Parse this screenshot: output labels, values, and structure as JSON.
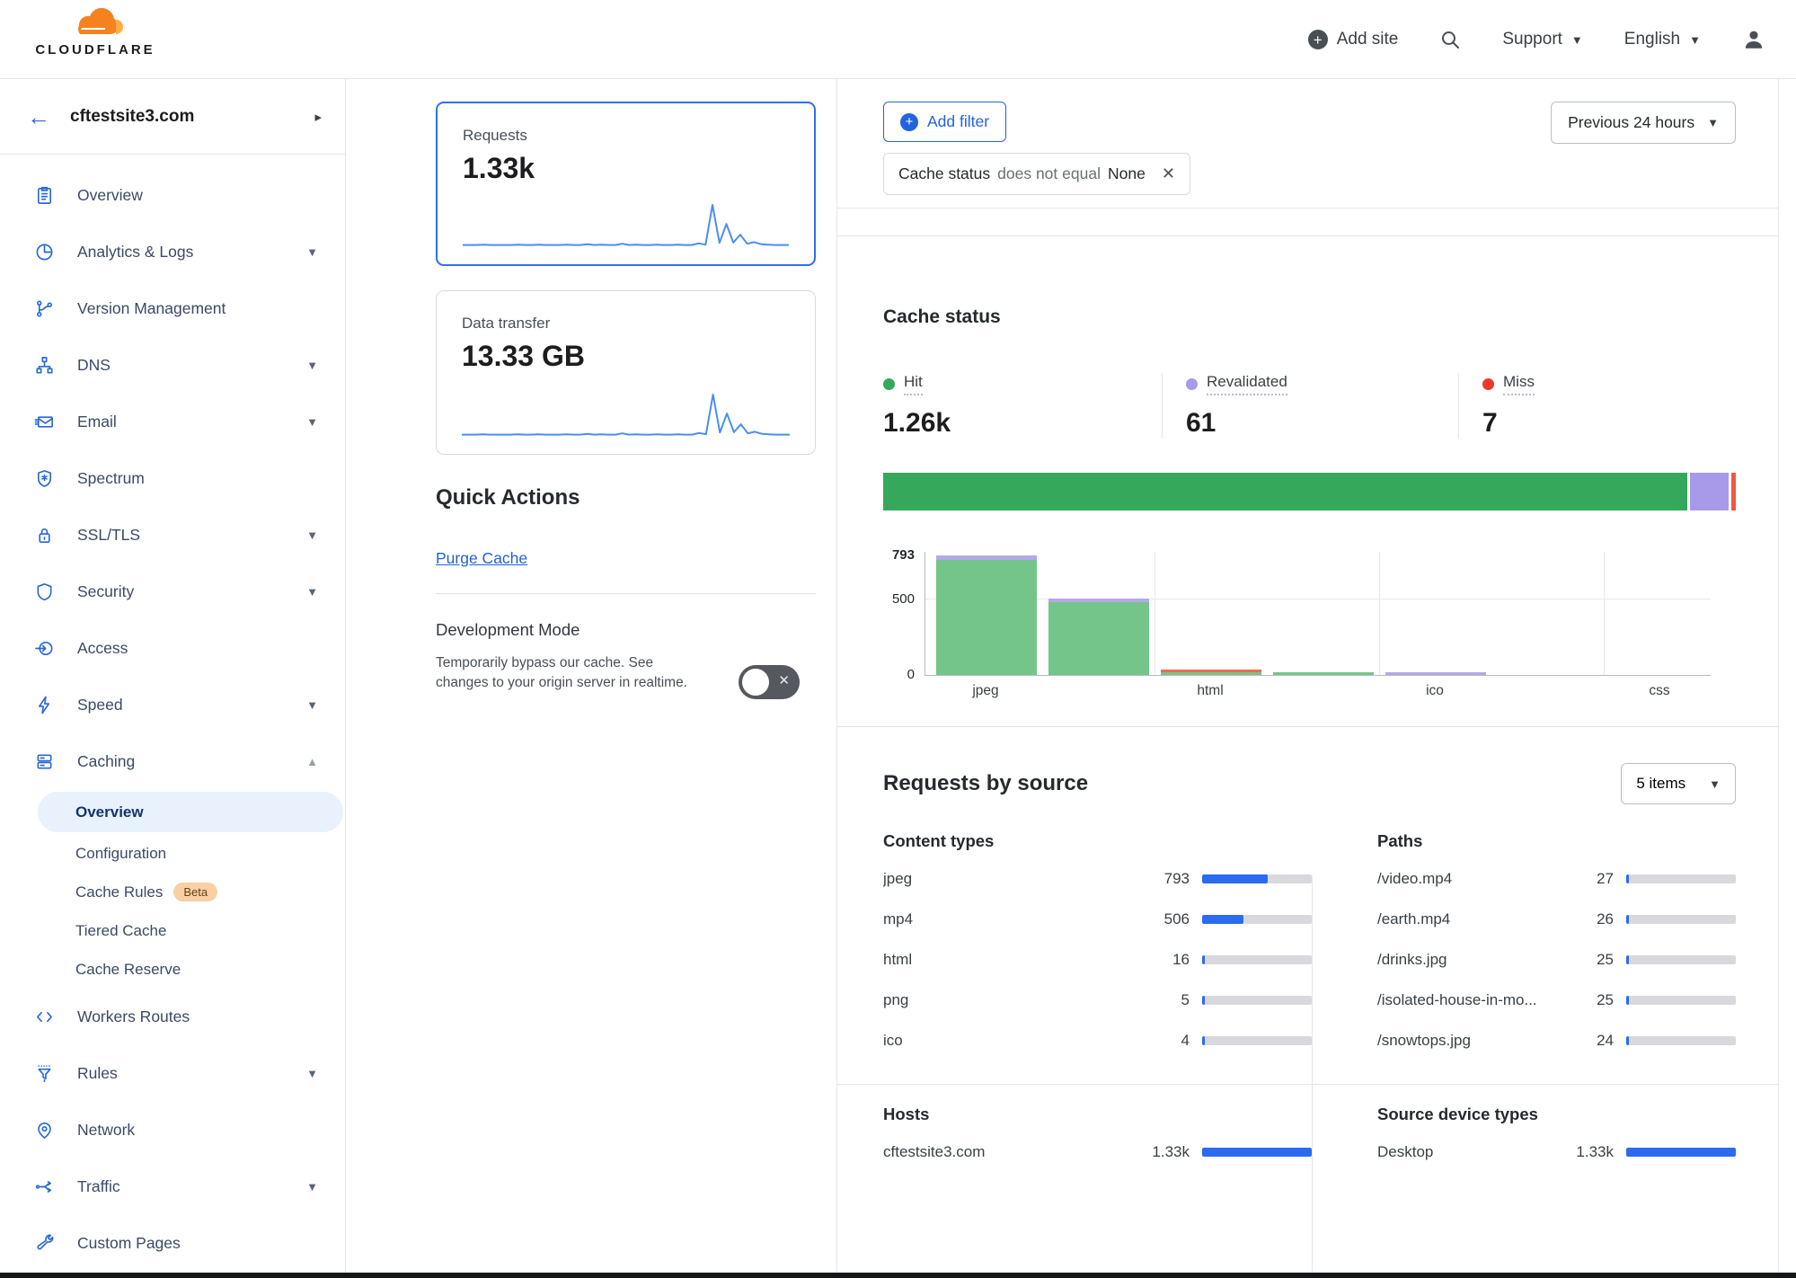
{
  "header": {
    "logo_text": "CLOUDFLARE",
    "add_site_label": "Add site",
    "support_label": "Support",
    "language_label": "English"
  },
  "sidebar": {
    "site_name": "cftestsite3.com",
    "items": [
      {
        "label": "Overview"
      },
      {
        "label": "Analytics & Logs"
      },
      {
        "label": "Version Management"
      },
      {
        "label": "DNS"
      },
      {
        "label": "Email"
      },
      {
        "label": "Spectrum"
      },
      {
        "label": "SSL/TLS"
      },
      {
        "label": "Security"
      },
      {
        "label": "Access"
      },
      {
        "label": "Speed"
      },
      {
        "label": "Caching"
      },
      {
        "label": "Workers Routes"
      },
      {
        "label": "Rules"
      },
      {
        "label": "Network"
      },
      {
        "label": "Traffic"
      },
      {
        "label": "Custom Pages"
      }
    ],
    "caching_subitems": [
      {
        "label": "Overview",
        "selected": true
      },
      {
        "label": "Configuration"
      },
      {
        "label": "Cache Rules",
        "badge": "Beta"
      },
      {
        "label": "Tiered Cache"
      },
      {
        "label": "Cache Reserve"
      }
    ]
  },
  "quick_panel": {
    "requests_label": "Requests",
    "requests_value": "1.33k",
    "data_transfer_label": "Data transfer",
    "data_transfer_value": "13.33 GB",
    "quick_actions_title": "Quick Actions",
    "purge_cache_label": "Purge Cache",
    "dev_mode_title": "Development Mode",
    "dev_mode_desc": "Temporarily bypass our cache. See changes to your origin server in realtime.",
    "dev_mode_state": "off"
  },
  "filters": {
    "add_filter_label": "Add filter",
    "chip_field": "Cache status",
    "chip_operator": "does not equal",
    "chip_value": "None",
    "time_range_label": "Previous 24 hours"
  },
  "cache_status": {
    "title": "Cache status",
    "stats": [
      {
        "label": "Hit",
        "value": "1.26k",
        "color": "#35a85c"
      },
      {
        "label": "Revalidated",
        "value": "61",
        "color": "#a89ae8"
      },
      {
        "label": "Miss",
        "value": "7",
        "color": "#f2382c"
      }
    ]
  },
  "requests_by_source": {
    "title": "Requests by source",
    "items_dropdown_label": "5 items",
    "content_types_title": "Content types",
    "paths_title": "Paths",
    "hosts_title": "Hosts",
    "devices_title": "Source device types"
  },
  "chart_data": [
    {
      "id": "requests-sparkline",
      "type": "line",
      "title": "Requests (Previous 24 hours)",
      "ylim": [
        0,
        100
      ],
      "values": [
        3,
        3,
        3,
        4,
        3,
        3,
        3,
        3,
        4,
        3,
        3,
        4,
        3,
        3,
        3,
        4,
        3,
        3,
        5,
        3,
        4,
        3,
        3,
        6,
        3,
        4,
        3,
        3,
        4,
        3,
        3,
        4,
        3,
        3,
        7,
        4,
        100,
        8,
        54,
        9,
        28,
        6,
        10,
        5,
        4,
        3,
        3,
        3
      ],
      "line_color": "#4a8df2"
    },
    {
      "id": "cache-status-stacked-bar",
      "type": "bar",
      "orientation": "horizontal-stacked",
      "series": [
        {
          "name": "Hit",
          "value": 1256,
          "color": "#35a85c"
        },
        {
          "name": "Revalidated",
          "value": 61,
          "color": "#a89ae8"
        },
        {
          "name": "Miss",
          "value": 7,
          "color": "#f25746"
        }
      ]
    },
    {
      "id": "cache-status-by-content-type",
      "type": "bar",
      "stacked": true,
      "categories": [
        "jpeg",
        "mp4",
        "html",
        "png",
        "ico",
        "",
        "css"
      ],
      "x_tick_labels": [
        {
          "slot": 0,
          "text": "jpeg"
        },
        {
          "slot": 2,
          "text": "html"
        },
        {
          "slot": 4,
          "text": "ico"
        },
        {
          "slot": 6,
          "text": "css"
        }
      ],
      "yticks": [
        0,
        500,
        793
      ],
      "ylim": [
        0,
        820
      ],
      "series": [
        {
          "name": "Hit",
          "color": "#74c58a",
          "values": [
            761,
            481,
            9,
            5,
            0,
            0,
            0
          ]
        },
        {
          "name": "Miss",
          "color": "#ef6a50",
          "values": [
            0,
            0,
            7,
            0,
            0,
            0,
            0
          ]
        },
        {
          "name": "Revalidated",
          "color": "#b2a9ea",
          "values": [
            32,
            25,
            0,
            0,
            4,
            0,
            0
          ]
        }
      ]
    },
    {
      "id": "content-types",
      "type": "table",
      "scale_max": 1333,
      "rows": [
        {
          "label": "jpeg",
          "value": 793,
          "display": "793"
        },
        {
          "label": "mp4",
          "value": 506,
          "display": "506"
        },
        {
          "label": "html",
          "value": 16,
          "display": "16"
        },
        {
          "label": "png",
          "value": 5,
          "display": "5"
        },
        {
          "label": "ico",
          "value": 4,
          "display": "4"
        }
      ]
    },
    {
      "id": "paths",
      "type": "table",
      "scale_max": 1333,
      "rows": [
        {
          "label": "/video.mp4",
          "value": 27,
          "display": "27"
        },
        {
          "label": "/earth.mp4",
          "value": 26,
          "display": "26"
        },
        {
          "label": "/drinks.jpg",
          "value": 25,
          "display": "25"
        },
        {
          "label": "/isolated-house-in-mo...",
          "value": 25,
          "display": "25"
        },
        {
          "label": "/snowtops.jpg",
          "value": 24,
          "display": "24"
        }
      ]
    },
    {
      "id": "hosts",
      "type": "table",
      "scale_max": 1333,
      "rows": [
        {
          "label": "cftestsite3.com",
          "value": 1333,
          "display": "1.33k"
        }
      ]
    },
    {
      "id": "source-device-types",
      "type": "table",
      "scale_max": 1333,
      "rows": [
        {
          "label": "Desktop",
          "value": 1333,
          "display": "1.33k"
        }
      ]
    }
  ]
}
